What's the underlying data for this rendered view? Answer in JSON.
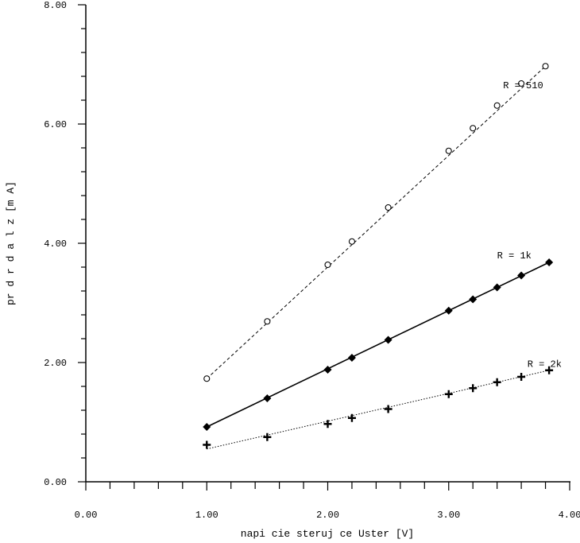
{
  "chart_data": {
    "type": "scatter",
    "xlabel": "napi cie steruj ce Uster [V]",
    "ylabel": "pr d  r d a  l z  [m A]",
    "xlim": [
      0,
      4
    ],
    "ylim": [
      0,
      8
    ],
    "x_ticks": [
      "0.00",
      "1.00",
      "2.00",
      "3.00",
      "4.00"
    ],
    "y_ticks": [
      "0.00",
      "2.00",
      "4.00",
      "6.00",
      "8.00"
    ],
    "grid": false,
    "legend": "none",
    "series": [
      {
        "name": "R = 510",
        "marker": "open-circle",
        "line": "dashed",
        "color": "#000000",
        "x": [
          1.0,
          1.5,
          2.0,
          2.2,
          2.5,
          3.0,
          3.2,
          3.4,
          3.6,
          3.8
        ],
        "y": [
          1.73,
          2.69,
          3.64,
          4.03,
          4.6,
          5.55,
          5.93,
          6.31,
          6.68,
          6.97
        ],
        "fit": [
          [
            1.0,
            1.73
          ],
          [
            3.8,
            6.97
          ]
        ]
      },
      {
        "name": "R = 1k",
        "marker": "filled-diamond",
        "line": "solid",
        "color": "#000000",
        "x": [
          1.0,
          1.5,
          2.0,
          2.2,
          2.5,
          3.0,
          3.2,
          3.4,
          3.6,
          3.83
        ],
        "y": [
          0.92,
          1.4,
          1.88,
          2.08,
          2.38,
          2.87,
          3.06,
          3.26,
          3.46,
          3.68
        ],
        "fit": [
          [
            1.0,
            0.92
          ],
          [
            3.83,
            3.68
          ]
        ]
      },
      {
        "name": "R = 2k",
        "marker": "plus",
        "line": "dotted",
        "color": "#000000",
        "x": [
          1.0,
          1.5,
          2.0,
          2.2,
          2.5,
          3.0,
          3.2,
          3.4,
          3.6,
          3.83
        ],
        "y": [
          0.62,
          0.75,
          0.97,
          1.07,
          1.22,
          1.47,
          1.57,
          1.67,
          1.76,
          1.87
        ],
        "fit": [
          [
            1.0,
            0.55
          ],
          [
            3.83,
            1.87
          ]
        ]
      }
    ]
  }
}
